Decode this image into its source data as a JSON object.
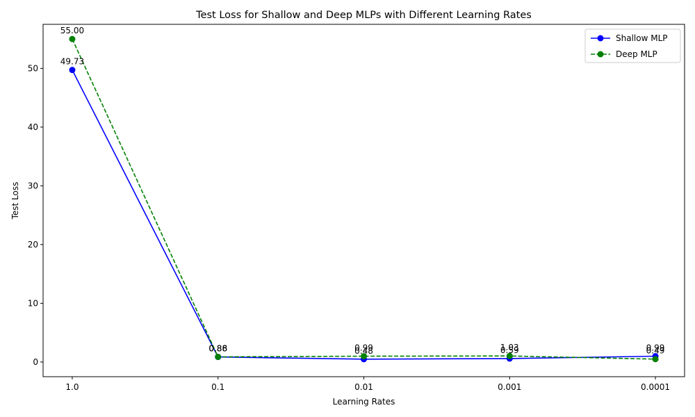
{
  "chart_data": {
    "type": "line",
    "title": "Test Loss for Shallow and Deep MLPs with Different Learning Rates",
    "xlabel": "Learning Rates",
    "ylabel": "Test Loss",
    "categories": [
      "1.0",
      "0.1",
      "0.01",
      "0.001",
      "0.0001"
    ],
    "ylim": [
      -2.5,
      57.5
    ],
    "yticks": [
      0,
      10,
      20,
      30,
      40,
      50
    ],
    "grid": false,
    "legend_position": "upper right",
    "series": [
      {
        "name": "Shallow MLP",
        "values": [
          49.73,
          0.86,
          0.48,
          0.59,
          0.99
        ],
        "labels": [
          "49.73",
          "0.86",
          "0.48",
          "0.59",
          "0.99"
        ],
        "color": "#0000ff",
        "linestyle": "solid",
        "marker": "circle"
      },
      {
        "name": "Deep MLP",
        "values": [
          55.0,
          0.88,
          0.99,
          1.03,
          0.49
        ],
        "labels": [
          "55.00",
          "0.88",
          "0.99",
          "1.03",
          "0.49"
        ],
        "color": "#008000",
        "linestyle": "dashed",
        "marker": "circle"
      }
    ]
  }
}
